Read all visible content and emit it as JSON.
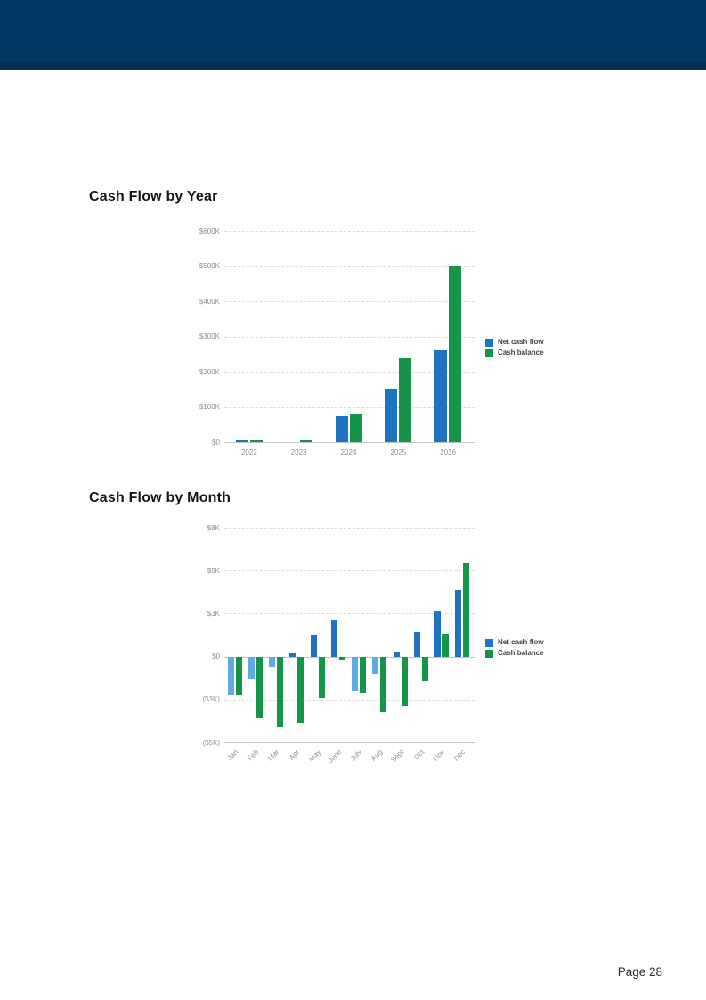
{
  "page": {
    "number_label": "Page 28",
    "background_color": "#ffffff"
  },
  "header": {
    "color": "#003a63",
    "bottom_strip_color": "#02304f"
  },
  "chart_data": [
    {
      "type": "bar",
      "title": "Cash Flow by Year",
      "value_unit": "USD thousands",
      "categories": [
        "2022",
        "2023",
        "2024",
        "2025",
        "2026"
      ],
      "series": [
        {
          "name": "Net cash flow",
          "color": "#1f74c2",
          "negative_color": "#5fa9e4",
          "values": [
            3,
            0,
            73,
            150,
            260
          ]
        },
        {
          "name": "Cash balance",
          "color": "#15954a",
          "negative_color": "#15954a",
          "values": [
            3,
            6,
            80,
            237,
            498
          ]
        }
      ],
      "y_ticks": [
        {
          "label": "$600K",
          "value": 600
        },
        {
          "label": "$500K",
          "value": 500
        },
        {
          "label": "$400K",
          "value": 400
        },
        {
          "label": "$300K",
          "value": 300
        },
        {
          "label": "$200K",
          "value": 200
        },
        {
          "label": "$100K",
          "value": 100
        },
        {
          "label": "$0",
          "value": 0
        }
      ],
      "legend_position": "right",
      "grid": "horizontal dashed",
      "x_label_rotation": 0
    },
    {
      "type": "bar",
      "title": "Cash Flow by Month",
      "value_unit": "USD thousands",
      "categories": [
        "Jan",
        "Feb",
        "Mar",
        "Apr",
        "May",
        "June",
        "July",
        "Aug",
        "Sept",
        "Oct",
        "Nov",
        "Dec"
      ],
      "series": [
        {
          "name": "Net cash flow",
          "color": "#1f74c2",
          "negative_color": "#5fa9e4",
          "values": [
            -2.7,
            -1.6,
            -0.7,
            0.2,
            1.5,
            2.5,
            -2.4,
            -1.2,
            0.3,
            1.7,
            3.1,
            4.1
          ]
        },
        {
          "name": "Cash balance",
          "color": "#15954a",
          "negative_color": "#15954a",
          "values": [
            -2.7,
            -3.9,
            -4.3,
            -4.1,
            -2.9,
            -0.3,
            -2.6,
            -3.6,
            -3.3,
            -1.7,
            1.6,
            5.5
          ]
        }
      ],
      "y_ticks": [
        {
          "label": "$8K",
          "value": 8
        },
        {
          "label": "$5K",
          "value": 5
        },
        {
          "label": "$3K",
          "value": 3
        },
        {
          "label": "$0",
          "value": 0
        },
        {
          "label": "($3K)",
          "value": -3
        },
        {
          "label": "($5K)",
          "value": -5
        }
      ],
      "legend_position": "right",
      "grid": "horizontal dashed",
      "x_label_rotation": -45
    }
  ]
}
